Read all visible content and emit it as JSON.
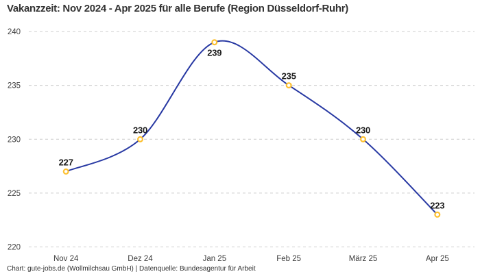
{
  "page": {
    "title": "Vakanzzeit: Nov 2024 - Apr 2025 für alle Berufe (Region Düsseldorf-Ruhr)",
    "footer": "Chart: gute-jobs.de (Wollmilchsau GmbH) | Datenquelle: Bundesagentur für Arbeit"
  },
  "colors": {
    "line": "#2839A3",
    "marker_stroke": "#FDC030",
    "marker_fill": "#FFFFFF",
    "grid": "#CCCCCC",
    "title_text": "#333333",
    "tick_text": "#3D3D3D",
    "point_label_text": "#1A1A1A",
    "footer_text": "#333333",
    "background": "#FFFFFF"
  },
  "chart_data": {
    "type": "line",
    "title": "Vakanzzeit: Nov 2024 - Apr 2025 für alle Berufe (Region Düsseldorf-Ruhr)",
    "categories": [
      "Nov 24",
      "Dez 24",
      "Jan 25",
      "Feb 25",
      "März 25",
      "Apr 25"
    ],
    "values": [
      227,
      230,
      239,
      235,
      230,
      223
    ],
    "point_labels": [
      "227",
      "230",
      "239",
      "235",
      "230",
      "223"
    ],
    "point_label_position": [
      "above",
      "above",
      "below",
      "above",
      "above",
      "above"
    ],
    "xlabel": "",
    "ylabel": "",
    "ylim": [
      220,
      240
    ],
    "yticks": [
      220,
      225,
      230,
      235,
      240
    ],
    "grid": "horizontal-dashed",
    "legend": "none",
    "line_style": "smooth",
    "marker_style": "hollow-circle",
    "source_note": "Chart: gute-jobs.de (Wollmilchsau GmbH) | Datenquelle: Bundesagentur für Arbeit"
  }
}
